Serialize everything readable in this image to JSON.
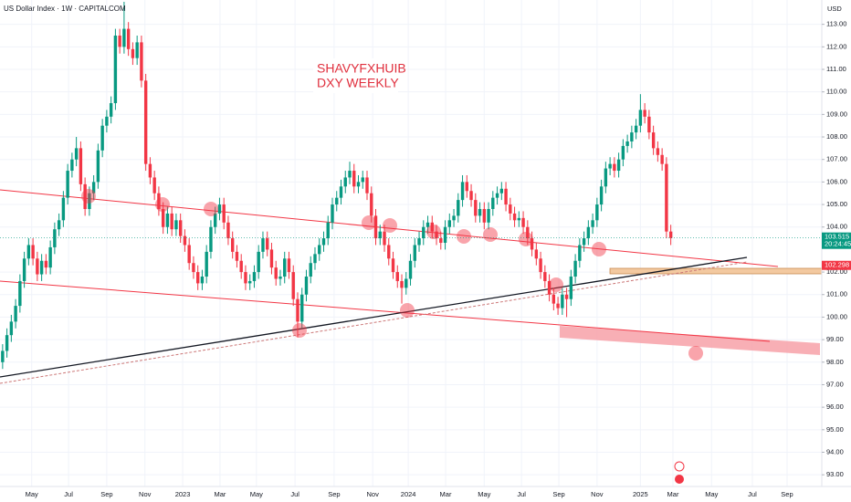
{
  "chart_data": {
    "type": "candlestick",
    "title": "US Dollar Index · 1W · CAPITALCOM",
    "annotations": [
      "SHAVYFXHUIB",
      "DXY WEEKLY"
    ],
    "y_axis_label": "USD",
    "last_price": 103.515,
    "countdown": "20:24:45",
    "level": 102.298,
    "up_color": "#089981",
    "down_color": "#f23645",
    "grid": true,
    "open": [
      98.0,
      98.5,
      99.2,
      99.8,
      100.5,
      101.6,
      102.6,
      103.2,
      102.6,
      101.9,
      102.5,
      102.2,
      103.1,
      103.9,
      104.3,
      105.3,
      106.5,
      107.0,
      107.5,
      105.9,
      104.8,
      105.5,
      106.0,
      107.4,
      108.5,
      108.9,
      109.5,
      112.5,
      112.0,
      112.8,
      111.9,
      111.5,
      112.2,
      110.5,
      106.8,
      106.2,
      105.5,
      104.8,
      104.0,
      104.6,
      103.9,
      104.3,
      103.6,
      103.2,
      102.4,
      102.0,
      101.5,
      101.8,
      102.9,
      104.0,
      104.6,
      105.0,
      104.2,
      103.5,
      102.9,
      102.5,
      102.0,
      101.5,
      101.6,
      102.0,
      102.9,
      103.5,
      103.0,
      102.2,
      101.7,
      101.8,
      102.6,
      102.0,
      100.8,
      99.8,
      101.0,
      101.8,
      102.4,
      102.8,
      103.2,
      103.5,
      104.2,
      105.0,
      105.3,
      105.8,
      106.2,
      106.5,
      105.8,
      106.0,
      106.2,
      105.5,
      104.5,
      103.5,
      103.8,
      103.2,
      102.6,
      102.0,
      101.6,
      101.3,
      101.7,
      102.5,
      103.2,
      103.5,
      104.0,
      104.2,
      103.8,
      103.5,
      103.3,
      104.0,
      104.3,
      104.5,
      105.2,
      106.0,
      105.6,
      105.2,
      104.5,
      104.8,
      104.2,
      104.8,
      105.3,
      105.5,
      105.7,
      105.0,
      104.6,
      104.3,
      104.4,
      104.0,
      103.5,
      103.0,
      102.6,
      102.0,
      101.6,
      101.0,
      100.6,
      100.4,
      101.0,
      100.8,
      101.8,
      102.5,
      103.2,
      103.5,
      104.0,
      104.3,
      105.0,
      105.8,
      106.6,
      106.8,
      106.5,
      107.0,
      107.6,
      107.8,
      108.2,
      108.5,
      109.2,
      108.9,
      108.2,
      107.5,
      107.2,
      106.8,
      103.8
    ],
    "high": [
      98.8,
      99.5,
      100.1,
      100.8,
      101.9,
      102.9,
      103.5,
      103.5,
      102.9,
      102.8,
      102.8,
      103.4,
      104.2,
      104.6,
      105.6,
      106.8,
      107.3,
      108.0,
      107.8,
      106.2,
      105.8,
      106.3,
      107.7,
      108.8,
      109.2,
      109.8,
      112.8,
      112.8,
      114.0,
      113.1,
      112.2,
      112.5,
      112.5,
      110.8,
      107.1,
      106.5,
      105.8,
      105.1,
      104.9,
      104.9,
      104.6,
      104.6,
      103.9,
      103.5,
      102.7,
      102.3,
      102.1,
      103.2,
      104.3,
      104.9,
      105.3,
      105.3,
      104.5,
      103.8,
      103.2,
      102.8,
      102.3,
      101.9,
      102.3,
      103.2,
      103.8,
      103.8,
      103.3,
      102.5,
      102.1,
      102.9,
      102.9,
      102.3,
      101.1,
      101.3,
      102.1,
      102.7,
      103.1,
      103.5,
      103.8,
      104.5,
      105.3,
      105.6,
      106.1,
      106.5,
      106.9,
      106.8,
      106.3,
      106.5,
      106.5,
      105.8,
      104.8,
      104.1,
      104.1,
      103.5,
      102.9,
      102.3,
      101.9,
      102.0,
      102.8,
      103.5,
      103.8,
      104.3,
      104.5,
      104.5,
      104.1,
      103.8,
      104.3,
      104.6,
      104.8,
      105.5,
      106.3,
      106.3,
      105.9,
      105.5,
      105.1,
      105.1,
      105.1,
      105.6,
      105.8,
      106.0,
      106.0,
      105.3,
      104.9,
      104.7,
      104.7,
      104.3,
      103.8,
      103.3,
      102.9,
      102.3,
      101.9,
      101.3,
      100.9,
      101.3,
      101.3,
      102.1,
      102.8,
      103.5,
      103.8,
      104.3,
      104.6,
      105.3,
      106.1,
      106.9,
      107.1,
      107.1,
      107.3,
      107.9,
      108.1,
      108.5,
      108.8,
      109.9,
      109.5,
      109.2,
      108.5,
      107.8,
      107.5,
      107.1,
      104.1
    ],
    "low": [
      97.7,
      98.2,
      98.9,
      99.5,
      100.2,
      101.3,
      102.3,
      102.3,
      101.6,
      101.6,
      101.9,
      101.9,
      102.8,
      103.6,
      104.0,
      105.0,
      106.2,
      106.7,
      105.6,
      104.5,
      104.5,
      105.2,
      105.7,
      107.1,
      108.2,
      108.6,
      109.2,
      111.7,
      111.7,
      111.6,
      111.2,
      111.2,
      110.2,
      106.5,
      105.9,
      105.2,
      104.5,
      103.7,
      103.7,
      103.6,
      103.6,
      103.3,
      102.9,
      102.1,
      101.7,
      101.2,
      101.2,
      101.5,
      102.6,
      103.7,
      104.3,
      103.9,
      103.2,
      102.6,
      102.2,
      101.7,
      101.2,
      101.2,
      101.3,
      101.7,
      102.6,
      102.7,
      101.9,
      101.4,
      101.4,
      101.5,
      101.7,
      100.5,
      99.1,
      99.5,
      100.7,
      101.5,
      102.1,
      102.5,
      102.9,
      103.2,
      103.9,
      104.7,
      105.0,
      105.5,
      105.9,
      105.5,
      105.5,
      105.7,
      105.2,
      104.2,
      103.2,
      103.2,
      102.9,
      102.3,
      101.7,
      101.3,
      100.6,
      101.0,
      101.4,
      102.2,
      102.9,
      103.2,
      103.7,
      103.5,
      103.2,
      103.0,
      103.0,
      103.7,
      104.0,
      104.2,
      104.9,
      105.3,
      104.9,
      104.2,
      104.2,
      103.9,
      103.9,
      104.5,
      105.0,
      105.2,
      104.7,
      104.3,
      104.0,
      104.0,
      103.7,
      103.2,
      102.7,
      102.3,
      101.7,
      101.3,
      100.7,
      100.3,
      100.1,
      100.1,
      100.0,
      100.5,
      101.5,
      102.2,
      102.9,
      103.2,
      103.7,
      104.0,
      104.7,
      105.5,
      106.3,
      106.2,
      106.2,
      106.7,
      107.3,
      107.5,
      107.9,
      108.2,
      108.6,
      107.9,
      107.2,
      106.9,
      106.5,
      103.5,
      103.2
    ],
    "close": [
      98.5,
      99.2,
      99.8,
      100.5,
      101.6,
      102.6,
      103.2,
      102.6,
      101.9,
      102.5,
      102.2,
      103.1,
      103.9,
      104.3,
      105.3,
      106.5,
      107.0,
      107.5,
      105.9,
      104.8,
      105.5,
      106.0,
      107.4,
      108.5,
      108.9,
      109.5,
      112.5,
      112.0,
      112.8,
      111.9,
      111.5,
      112.2,
      110.5,
      106.8,
      106.2,
      105.5,
      104.8,
      104.0,
      104.6,
      103.9,
      104.3,
      103.6,
      103.2,
      102.4,
      102.0,
      101.5,
      101.8,
      102.9,
      104.0,
      104.6,
      105.0,
      104.2,
      103.5,
      102.9,
      102.5,
      102.0,
      101.5,
      101.6,
      102.0,
      102.9,
      103.5,
      103.0,
      102.2,
      101.7,
      101.8,
      102.6,
      102.0,
      100.8,
      99.8,
      101.0,
      101.8,
      102.4,
      102.8,
      103.2,
      103.5,
      104.2,
      105.0,
      105.3,
      105.8,
      106.2,
      106.5,
      105.8,
      106.0,
      106.2,
      105.5,
      104.5,
      103.5,
      103.8,
      103.2,
      102.6,
      102.0,
      101.6,
      101.3,
      101.7,
      102.5,
      103.2,
      103.5,
      104.0,
      104.2,
      103.8,
      103.5,
      103.3,
      104.0,
      104.3,
      104.5,
      105.2,
      106.0,
      105.6,
      105.2,
      104.5,
      104.8,
      104.2,
      104.8,
      105.3,
      105.5,
      105.7,
      105.0,
      104.6,
      104.3,
      104.4,
      104.0,
      103.5,
      103.0,
      102.6,
      102.0,
      101.6,
      101.0,
      100.6,
      100.4,
      101.0,
      100.8,
      101.8,
      102.5,
      103.2,
      103.5,
      104.0,
      104.3,
      105.0,
      105.8,
      106.6,
      106.8,
      106.5,
      107.0,
      107.6,
      107.8,
      108.2,
      108.5,
      109.2,
      108.9,
      108.2,
      107.5,
      107.2,
      106.8,
      103.8,
      103.515
    ],
    "xlim": [
      -0.6,
      188.8
    ],
    "xticks": [
      {
        "value": 6.7,
        "label": "May"
      },
      {
        "value": 15.2,
        "label": "Jul"
      },
      {
        "value": 24,
        "label": "Sep"
      },
      {
        "value": 32.8,
        "label": "Nov"
      },
      {
        "value": 41.5,
        "label": "2023"
      },
      {
        "value": 50.1,
        "label": "Mar"
      },
      {
        "value": 58.5,
        "label": "May"
      },
      {
        "value": 67.4,
        "label": "Jul"
      },
      {
        "value": 76.4,
        "label": "Sep"
      },
      {
        "value": 85.3,
        "label": "Nov"
      },
      {
        "value": 93.5,
        "label": "2024"
      },
      {
        "value": 102.1,
        "label": "Mar"
      },
      {
        "value": 111,
        "label": "May"
      },
      {
        "value": 119.6,
        "label": "Jul"
      },
      {
        "value": 128.2,
        "label": "Sep"
      },
      {
        "value": 137,
        "label": "Nov"
      },
      {
        "value": 147,
        "label": "2025"
      },
      {
        "value": 154.5,
        "label": "Mar"
      },
      {
        "value": 163.4,
        "label": "May"
      },
      {
        "value": 172.8,
        "label": "Jul"
      },
      {
        "value": 180.8,
        "label": "Sep"
      }
    ],
    "ylim": [
      92.48,
      114.08
    ],
    "yticks": [
      {
        "value": 93,
        "label": "93.00"
      },
      {
        "value": 94,
        "label": "94.00"
      },
      {
        "value": 95,
        "label": "95.00"
      },
      {
        "value": 96,
        "label": "96.00"
      },
      {
        "value": 97,
        "label": "97.00"
      },
      {
        "value": 98,
        "label": "98.00"
      },
      {
        "value": 99,
        "label": "99.00"
      },
      {
        "value": 100,
        "label": "100.00"
      },
      {
        "value": 101,
        "label": "101.00"
      },
      {
        "value": 102,
        "label": "102.00"
      },
      {
        "value": 104,
        "label": "104.00"
      },
      {
        "value": 105,
        "label": "105.00"
      },
      {
        "value": 106,
        "label": "106.00"
      },
      {
        "value": 107,
        "label": "107.00"
      },
      {
        "value": 108,
        "label": "108.00"
      },
      {
        "value": 109,
        "label": "109.00"
      },
      {
        "value": 110,
        "label": "110.00"
      },
      {
        "value": 111,
        "label": "111.00"
      },
      {
        "value": 112,
        "label": "112.00"
      },
      {
        "value": 113,
        "label": "113.00"
      }
    ]
  }
}
